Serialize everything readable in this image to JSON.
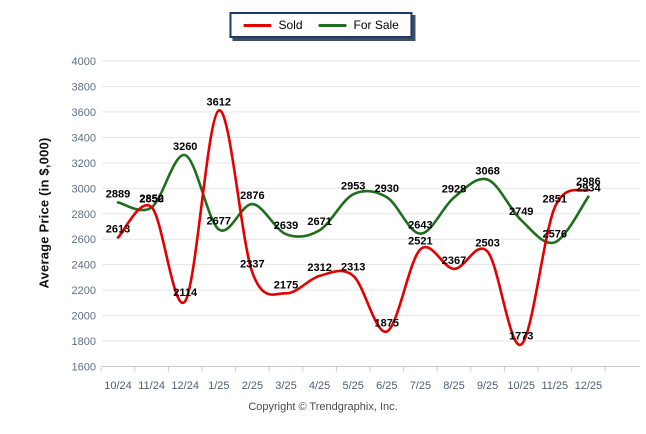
{
  "legend": {
    "position": "top-center"
  },
  "y_axis_title": "Average Price (in $,000)",
  "footer": {
    "copyright": "Copyright © Trendgraphix, Inc."
  },
  "colors": {
    "sold": "#e40000",
    "for_sale": "#1e6e1e",
    "gridline": "#e6e6e6",
    "axis_line": "#c9c9c9",
    "ytick_text": "#5e6e85",
    "xtick_text": "#4e5d78",
    "data_label": "#000000",
    "legend_border": "#1f3864",
    "legend_shadow": "#3d4f66"
  },
  "chart_data": {
    "type": "line",
    "title": "",
    "xlabel": "",
    "ylabel": "Average Price (in $,000)",
    "ylim": [
      1600,
      4000
    ],
    "ytick_step": 200,
    "yticks": [
      1600,
      1800,
      2000,
      2200,
      2400,
      2600,
      2800,
      3000,
      3200,
      3400,
      3600,
      3800,
      4000
    ],
    "grid": true,
    "smooth": true,
    "data_labels": true,
    "legend_position": "top-center",
    "categories": [
      "10/24",
      "11/24",
      "12/24",
      "1/25",
      "2/25",
      "3/25",
      "4/25",
      "5/25",
      "6/25",
      "7/25",
      "8/25",
      "9/25",
      "10/25",
      "11/25",
      "12/25"
    ],
    "series": [
      {
        "name": "Sold",
        "color": "#e40000",
        "values": [
          2613,
          2852,
          2114,
          3612,
          2337,
          2175,
          2312,
          2313,
          1875,
          2521,
          2367,
          2503,
          1773,
          2851,
          2986
        ]
      },
      {
        "name": "For Sale",
        "color": "#1e6e1e",
        "values": [
          2889,
          2850,
          3260,
          2677,
          2876,
          2639,
          2671,
          2953,
          2930,
          2643,
          2928,
          3068,
          2749,
          2576,
          2934
        ]
      }
    ]
  }
}
